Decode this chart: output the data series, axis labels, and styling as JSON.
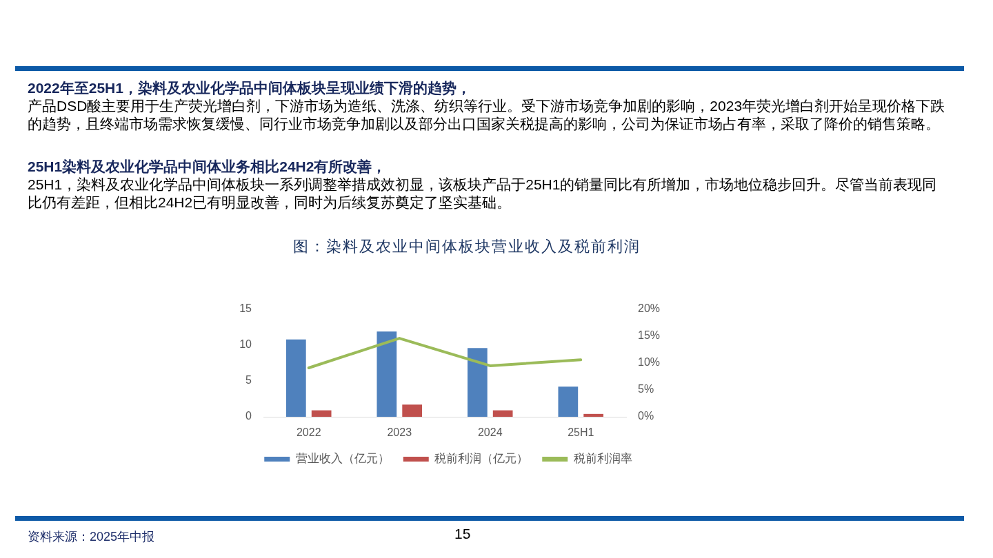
{
  "chart_data": {
    "type": "bar",
    "title": "图：染料及农业中间体板块营业收入及税前利润",
    "categories": [
      "2022",
      "2023",
      "2024",
      "25H1"
    ],
    "series": [
      {
        "name": "营业收入（亿元）",
        "color": "#4f81bd",
        "values": [
          10.8,
          11.9,
          9.6,
          4.2
        ]
      },
      {
        "name": "税前利润（亿元）",
        "color": "#c0504d",
        "values": [
          0.9,
          1.7,
          0.9,
          0.4
        ]
      },
      {
        "name": "税前利润率",
        "type": "line",
        "axis": "y2",
        "color": "#9bbb59",
        "values": [
          9.1,
          14.6,
          9.5,
          10.6
        ]
      }
    ],
    "ylim": [
      0,
      15
    ],
    "yticks": [
      0,
      5,
      10,
      15
    ],
    "y2lim": [
      0,
      20
    ],
    "y2ticks": [
      {
        "value": 0,
        "label": "0%"
      },
      {
        "value": 5,
        "label": "5%"
      },
      {
        "value": 10,
        "label": "10%"
      },
      {
        "value": 15,
        "label": "15%"
      },
      {
        "value": 20,
        "label": "20%"
      }
    ],
    "grid": false,
    "legend": "bottom",
    "marker": "none",
    "line_style": "solid",
    "annotations": [
      "2022年至25H1，染料及农业化学品中间体板块呈现业绩下滑的趋势，",
      "产品DSD酸主要用于生产荧光增白剂，下游市场为造纸、洗涤、纺织等行业。受下游市场竞争加剧的影响，2023年荧光增白剂开始呈现价格下跌的趋势，且终端市场需求恢复缓慢、同行业市场竞争加剧以及部分出口国家关税提高的影响，公司为保证市场占有率，采取了降价的销售策略。",
      "25H1染料及农业化学品中间体业务相比24H2有所改善，",
      "25H1，染料及农业化学品中间体板块一系列调整举措成效初显，该板块产品于25H1的销量同比有所增加，市场地位稳步回升。尽管当前表现同比仍有差距，但相比24H2已有明显改善，同时为后续复苏奠定了坚实基础。",
      "资料来源：2025年中报",
      "15"
    ]
  }
}
